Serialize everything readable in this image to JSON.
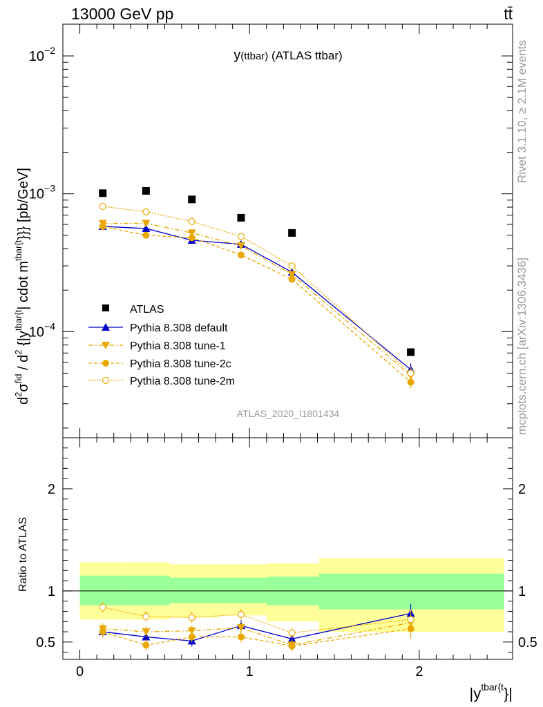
{
  "header": {
    "left": "13000 GeV pp",
    "right": "tt̄"
  },
  "side_labels": {
    "rivet": "Rivet 3.1.10, ≥ 2.1M events",
    "mcplots": "mcplots.cern.ch [arXiv:1306.3436]"
  },
  "chart_data": [
    {
      "type": "scatter",
      "panel": "main",
      "title": "y(ttbar) (ATLAS ttbar)",
      "title_main": "y",
      "title_sub": "(ttbar)",
      "title_tail": " (ATLAS ttbar)",
      "ylabel": "d²σ^fid / d²{|y^tbar{t}|} cdot m^tbar{t}}}} [pb/GeV]",
      "ylabel_parts": {
        "d1": "d",
        "sup1": "2",
        "sigma": "σ",
        "sup_fid": "fid",
        "d2": "d",
        "sup2": "2",
        "brace": " {|y",
        "sup_tbar1": "tbar{t",
        "rest": "| cdot m",
        "sup_tbar2": "tbar{t",
        "tail": "}}} [pb/GeV]"
      },
      "y_scale": "log",
      "xlim": [
        -0.1,
        2.55
      ],
      "ylim": [
        1.7e-05,
        0.017
      ],
      "y_tick_labels": [
        {
          "value": 0.0001,
          "base": "10",
          "exp": "−4"
        },
        {
          "value": 0.001,
          "base": "10",
          "exp": "−3"
        },
        {
          "value": 0.01,
          "base": "10",
          "exp": "−2"
        }
      ],
      "watermark": "ATLAS_2020_I1801434",
      "legend_position": "bottom-left",
      "bins": [
        [
          0.0,
          0.27
        ],
        [
          0.27,
          0.53
        ],
        [
          0.53,
          0.82
        ],
        [
          0.82,
          1.1
        ],
        [
          1.1,
          1.41
        ],
        [
          1.41,
          2.5
        ]
      ],
      "x": [
        0.135,
        0.39,
        0.66,
        0.95,
        1.25,
        1.95
      ],
      "series": [
        {
          "name": "ATLAS",
          "color": "#000000",
          "marker": "square",
          "line": "none",
          "values": [
            0.00101,
            0.00105,
            0.00091,
            0.00067,
            0.00052,
            7.1e-05
          ]
        },
        {
          "name": "Pythia 8.308 default",
          "color": "#0000cc",
          "marker": "triangle-up",
          "line": "solid",
          "values": [
            0.00058,
            0.00056,
            0.00046,
            0.00043,
            0.00027,
            5.3e-05
          ]
        },
        {
          "name": "Pythia 8.308 tune-1",
          "color": "#e8a800",
          "marker": "triangle-down",
          "line": "dashdot",
          "values": [
            0.00061,
            0.00061,
            0.00052,
            0.00042,
            0.00026,
            4.8e-05
          ]
        },
        {
          "name": "Pythia 8.308 tune-2c",
          "color": "#e8a800",
          "marker": "circle",
          "line": "dashed",
          "values": [
            0.00058,
            0.0005,
            0.00048,
            0.00036,
            0.00024,
            4.3e-05
          ]
        },
        {
          "name": "Pythia 8.308 tune-2m",
          "color": "#e8a800",
          "marker": "open-circle",
          "line": "dotted",
          "values": [
            0.00081,
            0.00074,
            0.00063,
            0.00049,
            0.0003,
            5e-05
          ]
        }
      ]
    },
    {
      "type": "scatter",
      "panel": "ratio",
      "ylabel": "Ratio to ATLAS",
      "xlabel_main": "|y",
      "xlabel_sup": "tbar{t",
      "xlabel_tail": "}|",
      "xlim": [
        -0.1,
        2.55
      ],
      "ylim": [
        0.33,
        2.5
      ],
      "x_ticks": [
        0,
        1,
        2
      ],
      "x_tick_labels": [
        "0",
        "1",
        "2"
      ],
      "y_ticks": [
        0.5,
        1,
        2
      ],
      "y_tick_labels": [
        "0.5",
        "1",
        "2"
      ],
      "bands": {
        "inner_color": "#99ff99",
        "outer_color": "#ffff99",
        "inner": [
          [
            0.86,
            1.15
          ],
          [
            0.86,
            1.15
          ],
          [
            0.88,
            1.13
          ],
          [
            0.88,
            1.13
          ],
          [
            0.86,
            1.14
          ],
          [
            0.82,
            1.17
          ]
        ],
        "outer": [
          [
            0.72,
            1.28
          ],
          [
            0.72,
            1.28
          ],
          [
            0.74,
            1.26
          ],
          [
            0.76,
            1.26
          ],
          [
            0.7,
            1.27
          ],
          [
            0.6,
            1.32
          ]
        ]
      },
      "series": [
        {
          "name": "Pythia 8.308 default",
          "color": "#0000cc",
          "marker": "triangle-up",
          "line": "solid",
          "values": [
            0.6,
            0.55,
            0.51,
            0.66,
            0.53,
            0.78
          ]
        },
        {
          "name": "Pythia 8.308 tune-1",
          "color": "#e8a800",
          "marker": "triangle-down",
          "line": "dashdot",
          "values": [
            0.63,
            0.6,
            0.61,
            0.64,
            0.47,
            0.69
          ]
        },
        {
          "name": "Pythia 8.308 tune-2c",
          "color": "#e8a800",
          "marker": "circle",
          "line": "dashed",
          "values": [
            0.6,
            0.47,
            0.55,
            0.55,
            0.46,
            0.63
          ]
        },
        {
          "name": "Pythia 8.308 tune-2m",
          "color": "#e8a800",
          "marker": "open-circle",
          "line": "dotted",
          "values": [
            0.84,
            0.75,
            0.74,
            0.77,
            0.59,
            0.72
          ]
        }
      ]
    }
  ]
}
